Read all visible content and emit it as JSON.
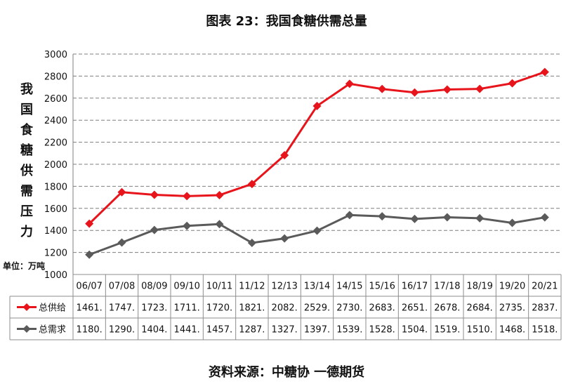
{
  "title": "图表 23：我国食糖供需总量",
  "source": "资料来源：中糖协 一德期货",
  "chart_data": {
    "type": "line",
    "ylabel": "我国食糖供需压力",
    "unit_label": "单位：万吨",
    "ylim": [
      1000,
      3000
    ],
    "yticks": [
      1000,
      1200,
      1400,
      1600,
      1800,
      2000,
      2200,
      2400,
      2600,
      2800,
      3000
    ],
    "grid": true,
    "categories": [
      "06/07",
      "07/08",
      "08/09",
      "09/10",
      "10/11",
      "11/12",
      "12/13",
      "13/14",
      "14/15",
      "15/16",
      "16/17",
      "17/18",
      "18/19",
      "19/20",
      "20/21"
    ],
    "series": [
      {
        "name": "总供给",
        "color": "#e8141b",
        "marker": "diamond",
        "values": [
          1461,
          1747,
          1723,
          1711,
          1720,
          1821,
          2082,
          2529,
          2730,
          2683,
          2651,
          2678,
          2684,
          2735,
          2837
        ],
        "table_values": [
          "1461.",
          "1747.",
          "1723.",
          "1711.",
          "1720.",
          "1821.",
          "2082.",
          "2529.",
          "2730.",
          "2683.",
          "2651.",
          "2678.",
          "2684.",
          "2735.",
          "2837."
        ]
      },
      {
        "name": "总需求",
        "color": "#5a5a5a",
        "marker": "diamond",
        "values": [
          1180,
          1290,
          1404,
          1441,
          1457,
          1287,
          1327,
          1397,
          1539,
          1528,
          1504,
          1519,
          1510,
          1468,
          1518
        ],
        "table_values": [
          "1180.",
          "1290.",
          "1404.",
          "1441.",
          "1457.",
          "1287.",
          "1327.",
          "1397.",
          "1539.",
          "1528.",
          "1504.",
          "1519.",
          "1510.",
          "1468.",
          "1518."
        ]
      }
    ]
  }
}
